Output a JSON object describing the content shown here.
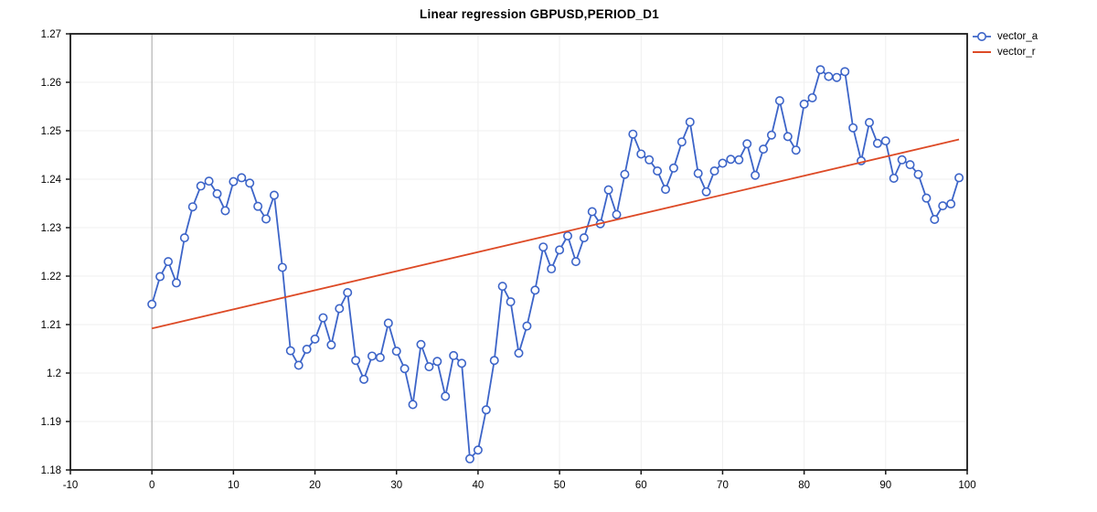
{
  "title": "Linear regression GBPUSD,PERIOD_D1",
  "colors": {
    "vector_a": "#3c64c8",
    "vector_r": "#dd4a26",
    "grid": "#efefef",
    "zero_line": "#b3b3b3",
    "axis_border": "#1a1a1a",
    "tick_text": "#000000",
    "marker_fill": "#ffffff"
  },
  "legend": {
    "items": [
      {
        "label": "vector_a",
        "color": "#3c64c8",
        "marker": "circle-line"
      },
      {
        "label": "vector_r",
        "color": "#dd4a26",
        "marker": "line"
      }
    ]
  },
  "chart_data": {
    "type": "line",
    "title": "Linear regression GBPUSD,PERIOD_D1",
    "xlabel": "",
    "ylabel": "",
    "xlim": [
      -10,
      100
    ],
    "ylim": [
      1.18,
      1.27
    ],
    "x_ticks": [
      -10,
      0,
      10,
      20,
      30,
      40,
      50,
      60,
      70,
      80,
      90,
      100
    ],
    "y_ticks": [
      1.18,
      1.19,
      1.2,
      1.21,
      1.22,
      1.23,
      1.24,
      1.25,
      1.26,
      1.27
    ],
    "y_tick_labels": [
      "1.18",
      "1.19",
      "1.2",
      "1.21",
      "1.22",
      "1.23",
      "1.24",
      "1.25",
      "1.26",
      "1.27"
    ],
    "grid": true,
    "zero_line_x": 0,
    "legend_position": "top-right-outside",
    "series": [
      {
        "name": "vector_a",
        "style": "line+markers",
        "color": "#3c64c8",
        "x_start": 0,
        "values": [
          1.2142,
          1.2199,
          1.223,
          1.2186,
          1.2279,
          1.2343,
          1.2386,
          1.2396,
          1.237,
          1.2335,
          1.2395,
          1.2403,
          1.2392,
          1.2344,
          1.2318,
          1.2367,
          1.2218,
          1.2046,
          1.2016,
          1.2049,
          1.207,
          1.2114,
          1.2058,
          1.2133,
          1.2166,
          1.2026,
          1.1987,
          1.2035,
          1.2032,
          1.2103,
          1.2045,
          1.2009,
          1.1935,
          1.2059,
          1.2013,
          1.2024,
          1.1952,
          1.2036,
          1.202,
          1.1823,
          1.1841,
          1.1924,
          1.2026,
          1.2179,
          1.2147,
          1.2041,
          1.2097,
          1.2171,
          1.226,
          1.2215,
          1.2254,
          1.2283,
          1.223,
          1.2279,
          1.2333,
          1.2308,
          1.2378,
          1.2327,
          1.241,
          1.2493,
          1.2452,
          1.244,
          1.2417,
          1.2379,
          1.2423,
          1.2477,
          1.2518,
          1.2412,
          1.2374,
          1.2417,
          1.2433,
          1.2441,
          1.244,
          1.2473,
          1.2408,
          1.2462,
          1.2491,
          1.2562,
          1.2488,
          1.246,
          1.2555,
          1.2568,
          1.2626,
          1.2612,
          1.261,
          1.2622,
          1.2506,
          1.2438,
          1.2517,
          1.2474,
          1.2479,
          1.2402,
          1.244,
          1.243,
          1.241,
          1.2361,
          1.2317,
          1.2345,
          1.2349,
          1.2403
        ]
      },
      {
        "name": "vector_r",
        "style": "line",
        "color": "#dd4a26",
        "x": [
          0,
          99
        ],
        "values": [
          1.2092,
          1.2482
        ]
      }
    ]
  }
}
